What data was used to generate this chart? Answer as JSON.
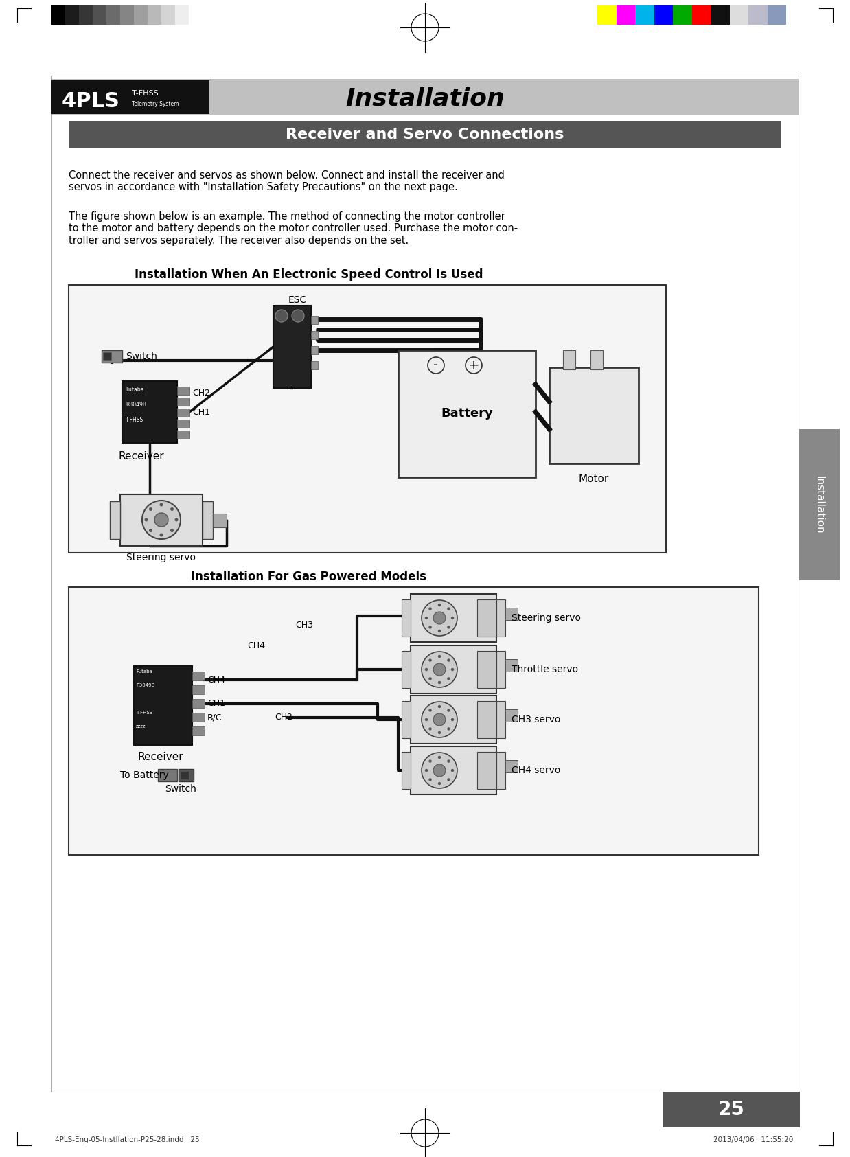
{
  "page_bg": "#ffffff",
  "gray_bars_colors": [
    "#000000",
    "#1c1c1c",
    "#363636",
    "#515151",
    "#6b6b6b",
    "#858585",
    "#9f9f9f",
    "#b9b9b9",
    "#d4d4d4",
    "#eeeeee",
    "#ffffff"
  ],
  "color_bars_colors": [
    "#ffff00",
    "#ff00ff",
    "#00b4eb",
    "#0000ff",
    "#00aa00",
    "#ff0000",
    "#111111",
    "#dddddd",
    "#bbbbcc",
    "#8899bb"
  ],
  "header_bar_color": "#c0c0c0",
  "logo_bg": "#111111",
  "title_text": "Installation",
  "title_fontstyle": "italic",
  "title_fontweight": "bold",
  "title_fontsize": 26,
  "section_bar_color": "#555555",
  "section_text": "Receiver and Servo Connections",
  "section_text_color": "#ffffff",
  "section_fontsize": 16,
  "section_fontweight": "bold",
  "body_fontsize": 10.5,
  "body_color": "#000000",
  "body_text1": "Connect the receiver and servos as shown below. Connect and install the receiver and\nservos in accordance with \"Installation Safety Precautions\" on the next page.",
  "body_text2": "The figure shown below is an example. The method of connecting the motor controller\nto the motor and battery depends on the motor controller used. Purchase the motor con-\ntroller and servos separately. The receiver also depends on the set.",
  "diag1_title": "Installation When An Electronic Speed Control Is Used",
  "diag1_title_fontsize": 12,
  "diag1_title_fontweight": "bold",
  "diag2_title": "Installation For Gas Powered Models",
  "diag2_title_fontsize": 12,
  "diag2_title_fontweight": "bold",
  "side_tab_color": "#888888",
  "side_tab_text": "Installation",
  "page_num": "25",
  "page_num_bg": "#555555",
  "page_num_color": "#ffffff",
  "page_num_fontsize": 20,
  "footer_left": "4PLS-Eng-05-Instllation-P25-28.indd   25",
  "footer_right": "2013/04/06   11:55:20",
  "footer_fontsize": 7.5
}
